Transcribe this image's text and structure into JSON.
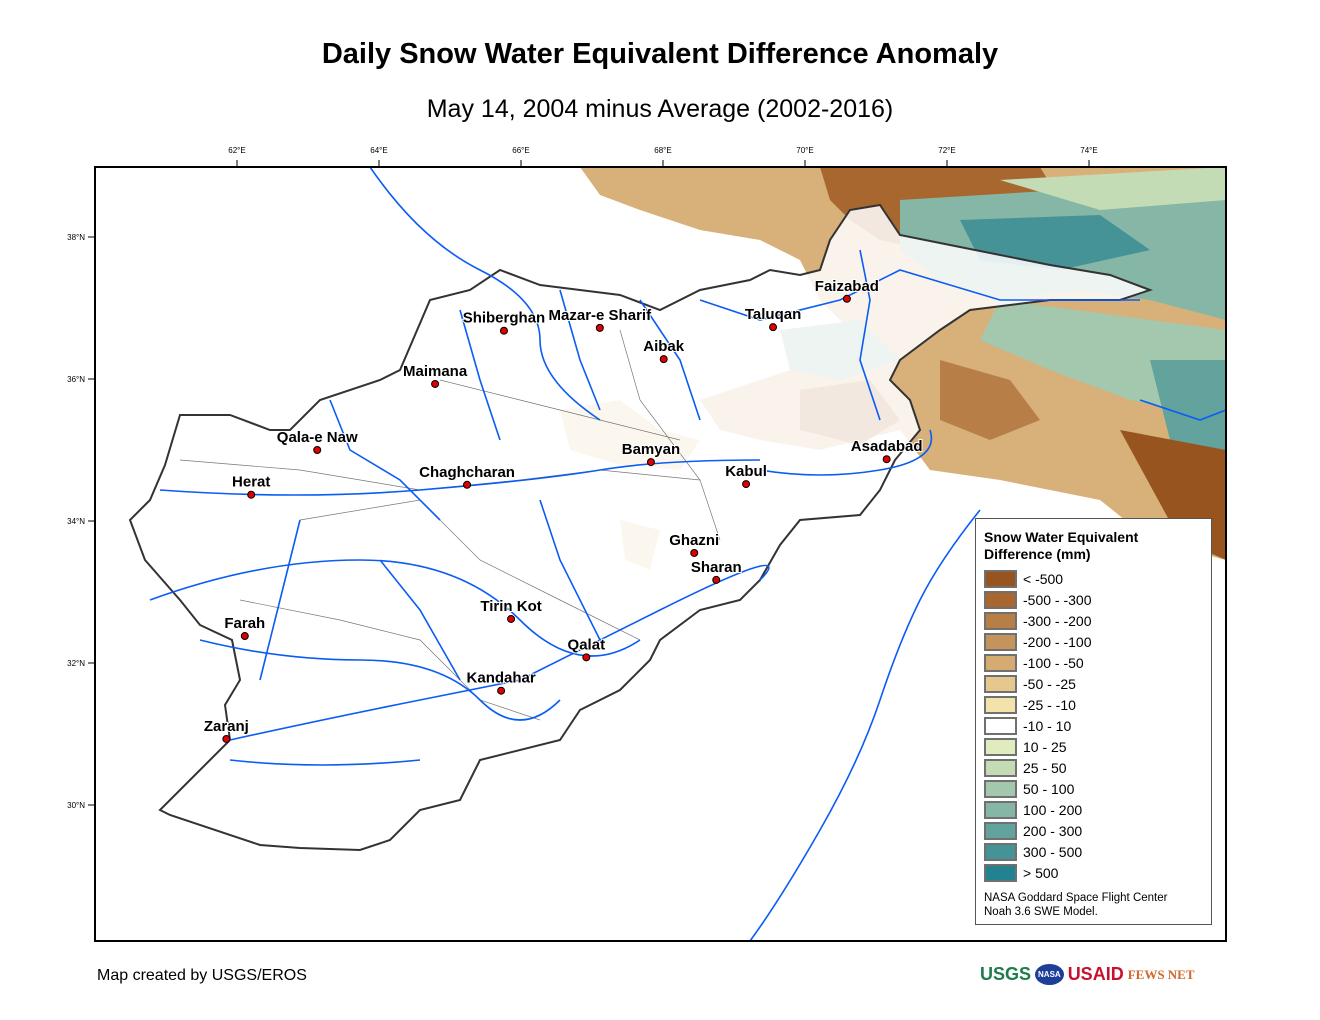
{
  "title": "Daily Snow Water Equivalent Difference Anomaly",
  "subtitle": "May 14, 2004 minus Average (2002-2016)",
  "lon_ticks": [
    {
      "lon": 62,
      "label": "62°E"
    },
    {
      "lon": 64,
      "label": "64°E"
    },
    {
      "lon": 66,
      "label": "66°E"
    },
    {
      "lon": 68,
      "label": "68°E"
    },
    {
      "lon": 70,
      "label": "70°E"
    },
    {
      "lon": 72,
      "label": "72°E"
    },
    {
      "lon": 74,
      "label": "74°E"
    }
  ],
  "lat_ticks": [
    {
      "lat": 38,
      "label": "38°N"
    },
    {
      "lat": 36,
      "label": "36°N"
    },
    {
      "lat": 34,
      "label": "34°N"
    },
    {
      "lat": 32,
      "label": "32°N"
    },
    {
      "lat": 30,
      "label": "30°N"
    }
  ],
  "cities": [
    {
      "name": "Shiberghan",
      "lon": 65.76,
      "lat": 36.68
    },
    {
      "name": "Mazar-e Sharif",
      "lon": 67.11,
      "lat": 36.72
    },
    {
      "name": "Aibak",
      "lon": 68.01,
      "lat": 36.28
    },
    {
      "name": "Taluqan",
      "lon": 69.55,
      "lat": 36.73
    },
    {
      "name": "Faizabad",
      "lon": 70.59,
      "lat": 37.13
    },
    {
      "name": "Maimana",
      "lon": 64.79,
      "lat": 35.93
    },
    {
      "name": "Qala-e Naw",
      "lon": 63.13,
      "lat": 35.0
    },
    {
      "name": "Herat",
      "lon": 62.2,
      "lat": 34.37
    },
    {
      "name": "Chaghcharan",
      "lon": 65.24,
      "lat": 34.51
    },
    {
      "name": "Bamyan",
      "lon": 67.83,
      "lat": 34.83
    },
    {
      "name": "Kabul",
      "lon": 69.17,
      "lat": 34.52
    },
    {
      "name": "Asadabad",
      "lon": 71.15,
      "lat": 34.87
    },
    {
      "name": "Ghazni",
      "lon": 68.44,
      "lat": 33.55
    },
    {
      "name": "Sharan",
      "lon": 68.75,
      "lat": 33.17
    },
    {
      "name": "Tirin Kot",
      "lon": 65.86,
      "lat": 32.62
    },
    {
      "name": "Qalat",
      "lon": 66.92,
      "lat": 32.08
    },
    {
      "name": "Kandahar",
      "lon": 65.72,
      "lat": 31.61
    },
    {
      "name": "Farah",
      "lon": 62.11,
      "lat": 32.38
    },
    {
      "name": "Zaranj",
      "lon": 61.85,
      "lat": 30.93
    }
  ],
  "legend": {
    "title_line1": "Snow Water Equivalent",
    "title_line2": "Difference (mm)",
    "classes": [
      {
        "label": "< -500",
        "color": "#98541f"
      },
      {
        "label": "-500 - -300",
        "color": "#a8672f"
      },
      {
        "label": "-300 - -200",
        "color": "#b77e48"
      },
      {
        "label": "-200 - -100",
        "color": "#c5935c"
      },
      {
        "label": "-100 - -50",
        "color": "#d6ab72"
      },
      {
        "label": "-50 - -25",
        "color": "#e6c88e"
      },
      {
        "label": "-25 - -10",
        "color": "#f3e3aa"
      },
      {
        "label": "-10 - 10",
        "color": "#ffffff"
      },
      {
        "label": "10 - 25",
        "color": "#e0ecbe"
      },
      {
        "label": "25 - 50",
        "color": "#c4dcb6"
      },
      {
        "label": "50 - 100",
        "color": "#a3c8ae"
      },
      {
        "label": "100 - 200",
        "color": "#85b6a6"
      },
      {
        "label": "200 - 300",
        "color": "#63a39e"
      },
      {
        "label": "300 - 500",
        "color": "#459297"
      },
      {
        "label": "> 500",
        "color": "#22828f"
      }
    ],
    "source_line1": "NASA Goddard Space Flight Center",
    "source_line2": "Noah 3.6 SWE Model."
  },
  "credit": "Map created by USGS/EROS",
  "logos": [
    "USGS",
    "NASA",
    "USAID",
    "FEWS NET"
  ],
  "colors": {
    "river": "#0a5cf5",
    "city_dot": "#e00000",
    "border": "#333333"
  }
}
